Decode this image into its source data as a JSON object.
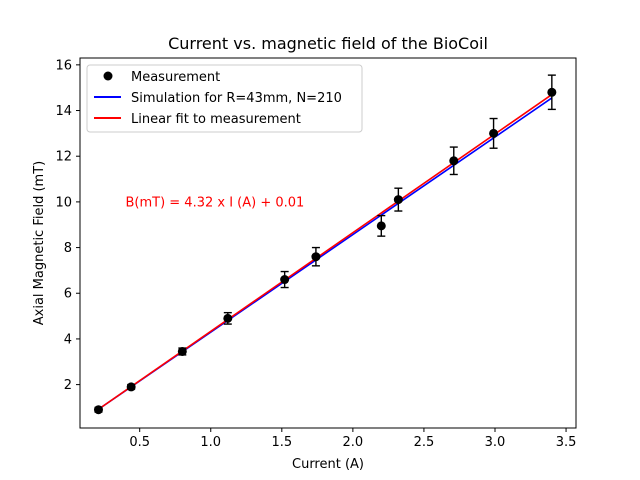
{
  "chart_data": {
    "type": "scatter",
    "title": "Current vs. magnetic field of the BioCoil",
    "xlabel": "Current (A)",
    "ylabel": "Axial Magnetic Field (mT)",
    "xlim": [
      0.08,
      3.57
    ],
    "ylim": [
      0.1,
      16.3
    ],
    "x_ticks": [
      0.5,
      1.0,
      1.5,
      2.0,
      2.5,
      3.0,
      3.5
    ],
    "x_tick_labels": [
      "0.5",
      "1.0",
      "1.5",
      "2.0",
      "2.5",
      "3.0",
      "3.5"
    ],
    "y_ticks": [
      2,
      4,
      6,
      8,
      10,
      12,
      14,
      16
    ],
    "y_tick_labels": [
      "2",
      "4",
      "6",
      "8",
      "10",
      "12",
      "14",
      "16"
    ],
    "grid": false,
    "legend_position": "top-left",
    "annotation": {
      "text": "B(mT) = 4.32 x I (A) + 0.01",
      "x": 0.4,
      "y": 10.0,
      "color": "#ff0000"
    },
    "series": [
      {
        "name": "Measurement",
        "kind": "errorbar-scatter",
        "color": "#000000",
        "points": [
          {
            "x": 0.21,
            "y": 0.9,
            "err": 0.1
          },
          {
            "x": 0.44,
            "y": 1.9,
            "err": 0.1
          },
          {
            "x": 0.8,
            "y": 3.45,
            "err": 0.15
          },
          {
            "x": 1.12,
            "y": 4.9,
            "err": 0.25
          },
          {
            "x": 1.52,
            "y": 6.6,
            "err": 0.35
          },
          {
            "x": 1.74,
            "y": 7.6,
            "err": 0.4
          },
          {
            "x": 2.2,
            "y": 8.95,
            "err": 0.45
          },
          {
            "x": 2.32,
            "y": 10.1,
            "err": 0.5
          },
          {
            "x": 2.71,
            "y": 11.8,
            "err": 0.6
          },
          {
            "x": 2.99,
            "y": 13.0,
            "err": 0.65
          },
          {
            "x": 3.4,
            "y": 14.8,
            "err": 0.75
          }
        ]
      },
      {
        "name": "Simulation for R=43mm, N=210",
        "kind": "line",
        "color": "#0000ff",
        "x": [
          0.21,
          3.4
        ],
        "y": [
          0.92,
          14.55
        ]
      },
      {
        "name": "Linear fit to measurement",
        "kind": "line",
        "color": "#ff0000",
        "x": [
          0.21,
          3.4
        ],
        "y": [
          0.92,
          14.7
        ]
      }
    ]
  }
}
